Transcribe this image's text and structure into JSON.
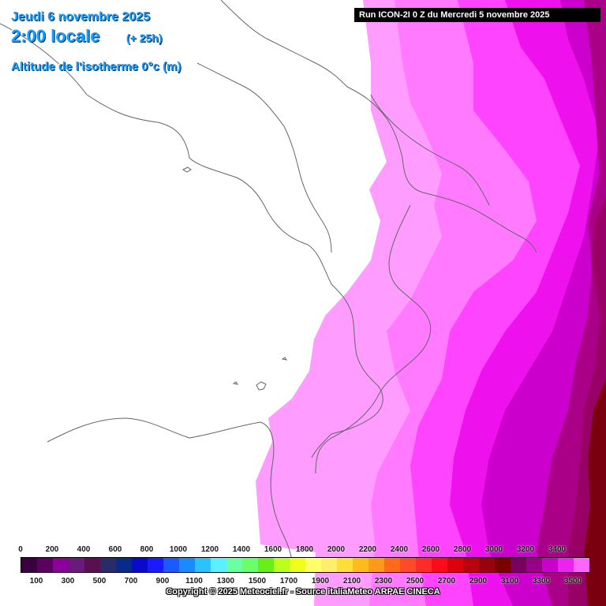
{
  "header": {
    "date": "Jeudi 6 novembre 2025",
    "local_time": "2:00 locale",
    "lead_time": "(+ 25h)",
    "variable": "Altitude de l'isotherme 0°c (m)",
    "run": "Run ICON-2I 0 Z du Mercredi 5 novembre 2025"
  },
  "legend": {
    "top_labels": [
      "0",
      "200",
      "400",
      "600",
      "800",
      "1000",
      "1200",
      "1400",
      "1600",
      "1800",
      "2000",
      "2200",
      "2400",
      "2600",
      "2800",
      "3000",
      "3200",
      "3400"
    ],
    "bottom_labels": [
      "100",
      "300",
      "500",
      "700",
      "900",
      "1100",
      "1300",
      "1500",
      "1700",
      "1900",
      "2100",
      "2300",
      "2500",
      "2700",
      "2900",
      "3100",
      "3300",
      "3500"
    ],
    "colors": [
      "#3a0040",
      "#5a0060",
      "#8b0099",
      "#6a1a7a",
      "#5a1050",
      "#2b2b6b",
      "#0a2a8a",
      "#0a0acc",
      "#1a1aff",
      "#1a5aff",
      "#1a8aff",
      "#2ac2ff",
      "#5af0ff",
      "#6affa0",
      "#6aff6a",
      "#6aee1a",
      "#bbff1a",
      "#eeff1a",
      "#ffff6a",
      "#ffee6a",
      "#ffdd3a",
      "#ffbb1a",
      "#ff991a",
      "#ff6a1a",
      "#ff4a2a",
      "#ff2a2a",
      "#ff0a1a",
      "#dd0010",
      "#bb0010",
      "#990010",
      "#7a0000",
      "#7a0060",
      "#990088",
      "#cc00cc",
      "#ee22ee",
      "#ff66ff"
    ],
    "copyright": "Copyright © 2025 Meteociel.fr - Source italiaMeteo ARPAE CINECA"
  },
  "map_fill_colors": {
    "band1": "#ff9cff",
    "band2": "#ff7aff",
    "band3": "#ff44ff",
    "band4": "#ee11ee",
    "band5": "#cc00cc",
    "band6": "#aa0088",
    "band7": "#990066",
    "band8": "#7a0010",
    "coastline": "#666666"
  }
}
